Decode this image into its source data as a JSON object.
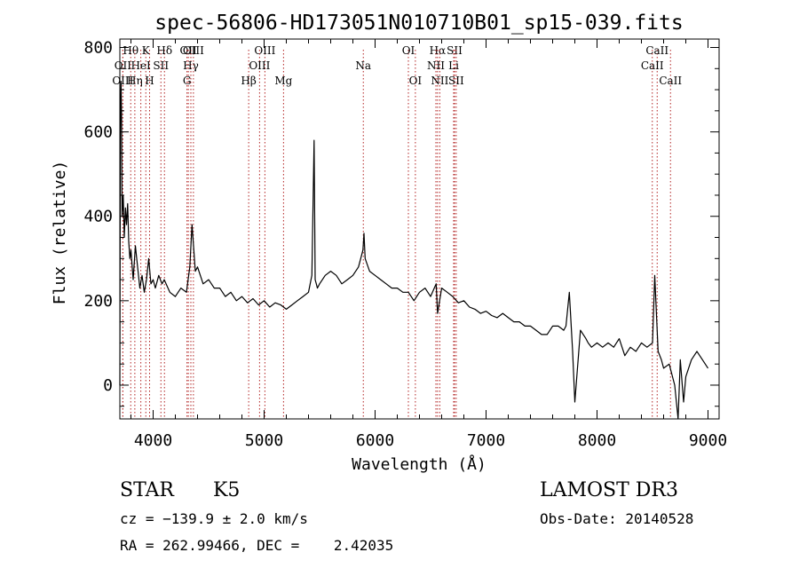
{
  "chart_data": {
    "type": "line",
    "title": "spec-56806-HD173051N010710B01_sp15-039.fits",
    "xlabel": "Wavelength (Å)",
    "ylabel": "Flux (relative)",
    "xlim": [
      3700,
      9100
    ],
    "ylim": [
      -80,
      820
    ],
    "xticks": [
      4000,
      5000,
      6000,
      7000,
      8000,
      9000
    ],
    "yticks": [
      0,
      200,
      400,
      600,
      800
    ],
    "grid": false,
    "series": [
      {
        "x": [
          3700,
          3705,
          3710,
          3715,
          3720,
          3730,
          3740,
          3750,
          3760,
          3770,
          3780,
          3790,
          3800,
          3820,
          3840,
          3860,
          3880,
          3900,
          3920,
          3940,
          3960,
          3980,
          4000,
          4020,
          4050,
          4080,
          4100,
          4150,
          4200,
          4250,
          4300,
          4330,
          4350,
          4380,
          4400,
          4450,
          4500,
          4550,
          4600,
          4650,
          4700,
          4750,
          4800,
          4850,
          4900,
          4950,
          5000,
          5050,
          5100,
          5150,
          5200,
          5250,
          5300,
          5350,
          5400,
          5430,
          5450,
          5460,
          5470,
          5480,
          5500,
          5550,
          5600,
          5650,
          5700,
          5750,
          5800,
          5850,
          5890,
          5900,
          5910,
          5950,
          6000,
          6050,
          6100,
          6150,
          6200,
          6250,
          6300,
          6350,
          6400,
          6450,
          6500,
          6550,
          6563,
          6600,
          6650,
          6700,
          6750,
          6800,
          6850,
          6900,
          6950,
          7000,
          7050,
          7100,
          7150,
          7200,
          7250,
          7300,
          7350,
          7400,
          7450,
          7500,
          7550,
          7600,
          7650,
          7700,
          7720,
          7750,
          7780,
          7800,
          7850,
          7900,
          7920,
          7950,
          8000,
          8050,
          8100,
          8150,
          8200,
          8250,
          8300,
          8350,
          8400,
          8450,
          8500,
          8520,
          8550,
          8580,
          8600,
          8650,
          8700,
          8730,
          8750,
          8780,
          8800,
          8850,
          8900,
          8950,
          9000
        ],
        "y": [
          0,
          600,
          720,
          650,
          400,
          450,
          350,
          420,
          380,
          430,
          340,
          300,
          320,
          250,
          330,
          280,
          230,
          260,
          220,
          250,
          300,
          240,
          250,
          230,
          260,
          240,
          250,
          220,
          210,
          230,
          220,
          280,
          380,
          270,
          280,
          240,
          250,
          230,
          230,
          210,
          220,
          200,
          210,
          195,
          205,
          190,
          200,
          185,
          195,
          190,
          180,
          190,
          200,
          210,
          220,
          260,
          580,
          250,
          240,
          230,
          240,
          260,
          270,
          260,
          240,
          250,
          260,
          280,
          320,
          360,
          300,
          270,
          260,
          250,
          240,
          230,
          230,
          220,
          220,
          200,
          220,
          230,
          210,
          240,
          170,
          230,
          220,
          210,
          195,
          200,
          185,
          180,
          170,
          175,
          165,
          160,
          170,
          160,
          150,
          150,
          140,
          140,
          130,
          120,
          120,
          140,
          140,
          130,
          140,
          220,
          80,
          -40,
          130,
          110,
          100,
          90,
          100,
          90,
          100,
          90,
          110,
          70,
          90,
          80,
          100,
          90,
          100,
          260,
          80,
          60,
          40,
          50,
          0,
          -80,
          60,
          -40,
          20,
          60,
          80,
          60,
          40
        ]
      }
    ],
    "line_marks": [
      {
        "label": "Hθ",
        "x": 3798,
        "row": 1
      },
      {
        "label": "OII",
        "x": 3727,
        "row": 2
      },
      {
        "label": "OIII",
        "x": 3727,
        "row": 3
      },
      {
        "label": "K",
        "x": 3934,
        "row": 1
      },
      {
        "label": "HeI",
        "x": 3889,
        "row": 2
      },
      {
        "label": "Hη",
        "x": 3835,
        "row": 3
      },
      {
        "label": "SII",
        "x": 4070,
        "row": 2
      },
      {
        "label": "H",
        "x": 3968,
        "row": 3
      },
      {
        "label": "Hδ",
        "x": 4102,
        "row": 1
      },
      {
        "label": "OII",
        "x": 4317,
        "row": 1
      },
      {
        "label": "Hγ",
        "x": 4340,
        "row": 2
      },
      {
        "label": "G",
        "x": 4305,
        "row": 3
      },
      {
        "label": "OIII",
        "x": 4363,
        "row": 1
      },
      {
        "label": "Hβ",
        "x": 4861,
        "row": 3
      },
      {
        "label": "OIII",
        "x": 5007,
        "row": 1
      },
      {
        "label": "OIII",
        "x": 4959,
        "row": 2
      },
      {
        "label": "Mg",
        "x": 5175,
        "row": 3
      },
      {
        "label": "Na",
        "x": 5894,
        "row": 2
      },
      {
        "label": "OI",
        "x": 6300,
        "row": 1
      },
      {
        "label": "OI",
        "x": 6363,
        "row": 3
      },
      {
        "label": "Hα",
        "x": 6563,
        "row": 1
      },
      {
        "label": "NII",
        "x": 6548,
        "row": 2
      },
      {
        "label": "NII",
        "x": 6583,
        "row": 3
      },
      {
        "label": "SII",
        "x": 6716,
        "row": 1
      },
      {
        "label": "Li",
        "x": 6708,
        "row": 2
      },
      {
        "label": "SII",
        "x": 6731,
        "row": 3
      },
      {
        "label": "CaII",
        "x": 8542,
        "row": 1
      },
      {
        "label": "CaII",
        "x": 8498,
        "row": 2
      },
      {
        "label": "CaII",
        "x": 8662,
        "row": 3
      }
    ]
  },
  "info": {
    "object_class": "STAR",
    "subclass": "K5",
    "survey": "LAMOST DR3",
    "cz_line": "cz = −139.9 ± 2.0 km/s",
    "obs_date_line": "Obs-Date: 20140528",
    "radec_line": "RA = 262.99466, DEC =    2.42035"
  },
  "colors": {
    "spectrum": "#000000",
    "marker": "#b22222"
  }
}
